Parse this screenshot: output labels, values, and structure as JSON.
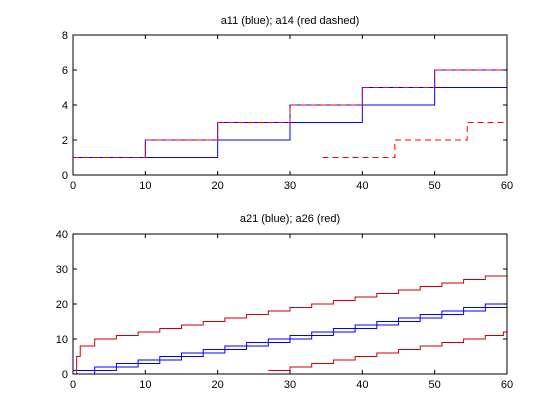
{
  "chart_data": [
    {
      "type": "line",
      "title": "a11 (blue); a14 (red dashed)",
      "xlabel": "",
      "ylabel": "",
      "xlim": [
        0,
        60
      ],
      "ylim": [
        0,
        8
      ],
      "xticks": [
        "0",
        "10",
        "20",
        "30",
        "40",
        "50",
        "60"
      ],
      "yticks": [
        "0",
        "2",
        "4",
        "6",
        "8"
      ],
      "grid": false,
      "series": [
        {
          "color": "#0000ff",
          "dash": "solid",
          "style": "step",
          "x": [
            0,
            10,
            20,
            30,
            40,
            50,
            60
          ],
          "y": [
            1,
            2,
            3,
            4,
            5,
            6,
            6
          ]
        },
        {
          "color": "#0000ff",
          "dash": "solid",
          "style": "step",
          "x": [
            0,
            10,
            20,
            30,
            40,
            50,
            60
          ],
          "y": [
            1,
            1,
            2,
            3,
            4,
            5,
            5
          ]
        },
        {
          "color": "#ff0000",
          "dash": "dashed",
          "style": "step",
          "x": [
            0,
            10,
            20,
            30,
            40,
            50,
            60
          ],
          "y": [
            1,
            2,
            3,
            4,
            5,
            6,
            6
          ]
        },
        {
          "color": "#ff0000",
          "dash": "dashed",
          "style": "step",
          "x": [
            34.5,
            44.5,
            54.5,
            60
          ],
          "y": [
            1,
            2,
            3,
            3
          ]
        }
      ]
    },
    {
      "type": "line",
      "title": "a21 (blue); a26 (red)",
      "xlabel": "",
      "ylabel": "",
      "xlim": [
        0,
        60
      ],
      "ylim": [
        0,
        40
      ],
      "xticks": [
        "0",
        "10",
        "20",
        "30",
        "40",
        "50",
        "60"
      ],
      "yticks": [
        "0",
        "10",
        "20",
        "30",
        "40"
      ],
      "grid": false,
      "series": [
        {
          "color": "#0000ff",
          "dash": "solid",
          "style": "step",
          "x": [
            0,
            3,
            6,
            9,
            12,
            15,
            18,
            21,
            24,
            27,
            30,
            33,
            36,
            39,
            42,
            45,
            48,
            51,
            54,
            57,
            60
          ],
          "y": [
            1,
            2,
            3,
            4,
            5,
            6,
            7,
            8,
            9,
            10,
            11,
            12,
            13,
            14,
            15,
            16,
            17,
            18,
            19,
            20,
            20
          ]
        },
        {
          "color": "#0000ff",
          "dash": "solid",
          "style": "step",
          "x": [
            0,
            3,
            6,
            9,
            12,
            15,
            18,
            21,
            24,
            27,
            30,
            33,
            36,
            39,
            42,
            45,
            48,
            51,
            54,
            57,
            60
          ],
          "y": [
            0,
            1,
            2,
            3,
            4,
            5,
            6,
            7,
            8,
            9,
            10,
            11,
            12,
            13,
            14,
            15,
            16,
            17,
            18,
            19,
            19
          ]
        },
        {
          "color": "#cc0000",
          "dash": "solid",
          "style": "step",
          "x": [
            0,
            0.5,
            1,
            3,
            6,
            9,
            12,
            15,
            18,
            21,
            24,
            27,
            30,
            33,
            36,
            39,
            42,
            45,
            48,
            51,
            54,
            57,
            60
          ],
          "y": [
            0,
            5,
            8,
            10,
            11,
            12,
            13,
            14,
            15,
            16,
            17,
            18,
            19,
            20,
            21,
            22,
            23,
            24,
            25,
            26,
            27,
            28,
            28
          ]
        },
        {
          "color": "#cc0000",
          "dash": "solid",
          "style": "step",
          "x": [
            27,
            30,
            33,
            36,
            39,
            42,
            45,
            48,
            51,
            54,
            57,
            59.5,
            60
          ],
          "y": [
            1,
            2,
            3,
            4,
            5,
            6,
            7,
            8,
            9,
            10,
            11,
            12,
            12
          ]
        }
      ]
    }
  ]
}
